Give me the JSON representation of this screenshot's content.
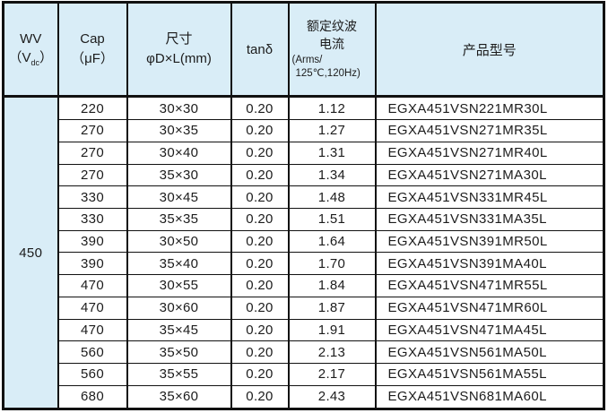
{
  "colors": {
    "header_bg": "#d9edf7",
    "border_color": "#111111",
    "text_color": "#1c1c1c",
    "page_bg": "#ffffff"
  },
  "table": {
    "header": {
      "wv_line1": "WV",
      "wv_paren_open": "（V",
      "wv_sub": "dc",
      "wv_paren_close": "）",
      "cap_line1": "Cap",
      "cap_line2": "（μF）",
      "size_line1": "尺寸",
      "size_line2": "φD×L(mm)",
      "tand": "tanδ",
      "ripple_line1": "额定纹波",
      "ripple_line2": "电流",
      "ripple_line3": "(Arms/",
      "ripple_line4": "125℃,120Hz)",
      "part": "产品型号"
    },
    "wv_value": "450",
    "rows": [
      [
        "220",
        "30×30",
        "0.20",
        "1.12",
        "EGXA451VSN221MR30L"
      ],
      [
        "270",
        "30×35",
        "0.20",
        "1.27",
        "EGXA451VSN271MR35L"
      ],
      [
        "270",
        "30×40",
        "0.20",
        "1.31",
        "EGXA451VSN271MR40L"
      ],
      [
        "270",
        "35×30",
        "0.20",
        "1.34",
        "EGXA451VSN271MA30L"
      ],
      [
        "330",
        "30×45",
        "0.20",
        "1.48",
        "EGXA451VSN331MR45L"
      ],
      [
        "330",
        "35×35",
        "0.20",
        "1.51",
        "EGXA451VSN331MA35L"
      ],
      [
        "390",
        "30×50",
        "0.20",
        "1.64",
        "EGXA451VSN391MR50L"
      ],
      [
        "390",
        "35×40",
        "0.20",
        "1.70",
        "EGXA451VSN391MA40L"
      ],
      [
        "470",
        "30×55",
        "0.20",
        "1.84",
        "EGXA451VSN471MR55L"
      ],
      [
        "470",
        "30×60",
        "0.20",
        "1.87",
        "EGXA451VSN471MR60L"
      ],
      [
        "470",
        "35×45",
        "0.20",
        "1.91",
        "EGXA451VSN471MA45L"
      ],
      [
        "560",
        "35×50",
        "0.20",
        "2.13",
        "EGXA451VSN561MA50L"
      ],
      [
        "560",
        "35×55",
        "0.20",
        "2.17",
        "EGXA451VSN561MA55L"
      ],
      [
        "680",
        "35×60",
        "0.20",
        "2.43",
        "EGXA451VSN681MA60L"
      ]
    ]
  }
}
